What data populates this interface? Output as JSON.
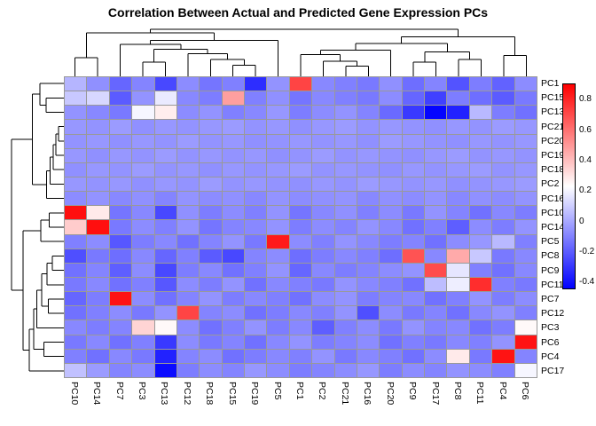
{
  "title": "Correlation Between Actual and Predicted Gene Expression PCs",
  "chart_data": {
    "type": "heatmap",
    "title": "Correlation Between Actual and Predicted Gene Expression PCs",
    "rows": [
      "PC1",
      "PC15",
      "PC13",
      "PC21",
      "PC20",
      "PC19",
      "PC18",
      "PC2",
      "PC16",
      "PC10",
      "PC14",
      "PC5",
      "PC8",
      "PC9",
      "PC11",
      "PC7",
      "PC12",
      "PC3",
      "PC6",
      "PC4",
      "PC17"
    ],
    "columns": [
      "PC10",
      "PC14",
      "PC7",
      "PC3",
      "PC13",
      "PC12",
      "PC18",
      "PC15",
      "PC19",
      "PC5",
      "PC1",
      "PC2",
      "PC21",
      "PC16",
      "PC20",
      "PC9",
      "PC17",
      "PC8",
      "PC11",
      "PC4",
      "PC6"
    ],
    "values": [
      [
        0.03,
        -0.07,
        -0.18,
        -0.1,
        -0.26,
        -0.08,
        -0.14,
        -0.11,
        -0.33,
        -0.06,
        0.72,
        -0.09,
        -0.11,
        -0.13,
        -0.07,
        -0.16,
        -0.1,
        -0.23,
        -0.12,
        -0.19,
        -0.08
      ],
      [
        0.08,
        0.12,
        -0.21,
        -0.06,
        0.17,
        -0.09,
        -0.12,
        0.48,
        -0.11,
        -0.07,
        -0.14,
        -0.09,
        -0.11,
        -0.13,
        -0.08,
        -0.18,
        -0.28,
        -0.12,
        -0.16,
        -0.21,
        -0.13
      ],
      [
        -0.06,
        -0.09,
        -0.13,
        0.2,
        0.27,
        -0.08,
        -0.06,
        -0.11,
        -0.09,
        -0.05,
        -0.12,
        -0.08,
        -0.06,
        -0.1,
        -0.17,
        -0.3,
        -0.44,
        -0.36,
        0.04,
        -0.12,
        -0.15
      ],
      [
        -0.05,
        -0.06,
        -0.04,
        -0.07,
        -0.05,
        -0.06,
        -0.05,
        -0.04,
        -0.06,
        -0.05,
        -0.07,
        -0.05,
        -0.04,
        -0.06,
        -0.05,
        -0.06,
        -0.07,
        -0.05,
        -0.06,
        -0.04,
        -0.05
      ],
      [
        -0.06,
        -0.05,
        -0.07,
        -0.05,
        -0.06,
        -0.04,
        -0.06,
        -0.05,
        -0.07,
        -0.06,
        -0.05,
        -0.06,
        -0.05,
        -0.07,
        -0.04,
        -0.05,
        -0.06,
        -0.07,
        -0.05,
        -0.06,
        -0.05
      ],
      [
        -0.05,
        -0.07,
        -0.05,
        -0.06,
        -0.04,
        -0.06,
        -0.05,
        -0.06,
        -0.05,
        -0.07,
        -0.06,
        -0.04,
        -0.06,
        -0.05,
        -0.06,
        -0.07,
        -0.05,
        -0.04,
        -0.06,
        -0.05,
        -0.06
      ],
      [
        -0.07,
        -0.05,
        -0.06,
        -0.04,
        -0.06,
        -0.05,
        -0.07,
        -0.05,
        -0.06,
        -0.05,
        -0.04,
        -0.06,
        -0.05,
        -0.06,
        -0.07,
        -0.05,
        -0.06,
        -0.05,
        -0.04,
        -0.06,
        -0.05
      ],
      [
        -0.05,
        -0.06,
        -0.05,
        -0.07,
        -0.05,
        -0.06,
        -0.04,
        -0.06,
        -0.05,
        -0.06,
        -0.07,
        -0.05,
        -0.06,
        -0.04,
        -0.05,
        -0.06,
        -0.05,
        -0.07,
        -0.06,
        -0.05,
        -0.04
      ],
      [
        -0.08,
        -0.06,
        -0.09,
        -0.07,
        -0.1,
        -0.06,
        -0.08,
        -0.07,
        -0.09,
        -0.06,
        -0.08,
        -0.07,
        -0.06,
        -0.09,
        -0.07,
        -0.08,
        -0.06,
        -0.09,
        -0.07,
        -0.08,
        -0.06
      ],
      [
        0.86,
        0.28,
        -0.14,
        -0.09,
        -0.26,
        -0.07,
        -0.12,
        -0.08,
        -0.11,
        -0.06,
        -0.14,
        -0.09,
        -0.07,
        -0.11,
        -0.08,
        -0.13,
        -0.06,
        -0.1,
        -0.15,
        -0.09,
        -0.12
      ],
      [
        0.36,
        0.86,
        -0.13,
        -0.08,
        -0.11,
        -0.06,
        -0.14,
        -0.1,
        -0.09,
        -0.06,
        -0.12,
        -0.08,
        -0.1,
        -0.06,
        -0.09,
        -0.15,
        -0.11,
        -0.2,
        -0.08,
        -0.12,
        -0.06
      ],
      [
        -0.11,
        -0.08,
        -0.22,
        -0.12,
        -0.09,
        -0.15,
        -0.1,
        -0.06,
        -0.13,
        0.83,
        -0.08,
        -0.11,
        -0.06,
        -0.09,
        -0.12,
        -0.1,
        -0.15,
        -0.08,
        -0.05,
        0.04,
        -0.11
      ],
      [
        -0.24,
        -0.13,
        -0.16,
        -0.09,
        -0.18,
        -0.11,
        -0.21,
        -0.26,
        -0.1,
        -0.08,
        -0.16,
        -0.12,
        -0.09,
        -0.11,
        -0.16,
        0.68,
        -0.09,
        0.45,
        0.08,
        -0.13,
        -0.09
      ],
      [
        -0.15,
        -0.1,
        -0.2,
        -0.08,
        -0.26,
        -0.12,
        -0.09,
        -0.15,
        -0.11,
        -0.06,
        -0.18,
        -0.09,
        -0.12,
        -0.1,
        -0.08,
        -0.06,
        0.7,
        0.16,
        -0.11,
        -0.15,
        -0.09
      ],
      [
        -0.13,
        -0.09,
        -0.15,
        -0.11,
        -0.22,
        -0.08,
        -0.12,
        -0.06,
        -0.15,
        -0.09,
        -0.11,
        -0.13,
        -0.06,
        -0.09,
        -0.11,
        -0.15,
        0.05,
        0.18,
        0.78,
        -0.11,
        -0.13
      ],
      [
        -0.18,
        -0.12,
        0.85,
        -0.08,
        -0.15,
        -0.1,
        -0.06,
        -0.12,
        -0.09,
        -0.11,
        -0.15,
        -0.08,
        -0.06,
        -0.12,
        -0.1,
        -0.09,
        -0.15,
        -0.11,
        -0.06,
        -0.12,
        -0.08
      ],
      [
        -0.15,
        -0.11,
        -0.08,
        -0.13,
        -0.06,
        0.72,
        -0.1,
        -0.08,
        -0.15,
        -0.12,
        -0.09,
        -0.11,
        -0.06,
        -0.24,
        -0.08,
        -0.13,
        -0.1,
        -0.15,
        -0.09,
        -0.06,
        -0.11
      ],
      [
        -0.09,
        -0.12,
        -0.1,
        0.34,
        0.24,
        -0.08,
        -0.15,
        -0.11,
        -0.06,
        -0.12,
        -0.09,
        -0.2,
        -0.11,
        -0.08,
        -0.13,
        -0.06,
        -0.1,
        -0.09,
        -0.15,
        -0.12,
        0.24
      ],
      [
        -0.13,
        -0.09,
        -0.15,
        -0.11,
        -0.3,
        -0.08,
        -0.13,
        -0.1,
        -0.15,
        -0.09,
        -0.06,
        -0.12,
        -0.1,
        -0.08,
        -0.15,
        -0.11,
        -0.13,
        -0.09,
        -0.11,
        -0.06,
        0.85
      ],
      [
        -0.11,
        -0.15,
        -0.09,
        -0.13,
        -0.36,
        -0.1,
        -0.08,
        -0.15,
        -0.12,
        -0.09,
        -0.11,
        -0.06,
        -0.13,
        -0.09,
        -0.11,
        -0.15,
        -0.08,
        0.28,
        -0.13,
        0.85,
        -0.1
      ],
      [
        0.06,
        -0.04,
        -0.1,
        -0.08,
        -0.42,
        -0.12,
        -0.08,
        -0.1,
        -0.05,
        -0.08,
        -0.12,
        -0.1,
        -0.08,
        -0.05,
        -0.12,
        -0.08,
        -0.1,
        -0.06,
        -0.08,
        -0.11,
        0.2
      ]
    ],
    "colormap": {
      "min": -0.45,
      "max": 0.9,
      "white_point": 0.225,
      "low": "#0000FF",
      "mid": "#FFFFFF",
      "high": "#FF0000",
      "grid_color": "#999999"
    },
    "legend_ticks": [
      "0.8",
      "0.6",
      "0.4",
      "0.2",
      "0",
      "-0.2",
      "-0.4"
    ],
    "legend_tick_values": [
      0.8,
      0.6,
      0.4,
      0.2,
      0,
      -0.2,
      -0.4
    ],
    "legend_position": "right",
    "col_dendrogram": {
      "h": 1.0,
      "c": [
        {
          "h": 0.92,
          "c": [
            {
              "h": 0.4,
              "c": [
                0,
                1
              ]
            },
            {
              "h": 0.76,
              "c": [
                {
                  "h": 0.68,
                  "c": [
                    2,
                    {
                      "h": 0.58,
                      "c": [
                        {
                          "h": 0.3,
                          "c": [
                            3,
                            4
                          ]
                        },
                        {
                          "h": 0.48,
                          "c": [
                            5,
                            {
                              "h": 0.36,
                              "c": [
                                6,
                                {
                                  "h": 0.24,
                                  "c": [
                                    7,
                                    8
                                  ]
                                }
                              ]
                            }
                          ]
                        }
                      ]
                    }
                  ]
                },
                9
              ]
            }
          ]
        },
        {
          "h": 0.84,
          "c": [
            {
              "h": 0.7,
              "c": [
                {
                  "h": 0.56,
                  "c": [
                    {
                      "h": 0.46,
                      "c": [
                        10,
                        {
                          "h": 0.32,
                          "c": [
                            11,
                            {
                              "h": 0.22,
                              "c": [
                                12,
                                13
                              ]
                            }
                          ]
                        }
                      ]
                    },
                    14
                  ]
                },
                {
                  "h": 0.52,
                  "c": [
                    {
                      "h": 0.3,
                      "c": [
                        15,
                        16
                      ]
                    },
                    {
                      "h": 0.36,
                      "c": [
                        17,
                        18
                      ]
                    }
                  ]
                }
              ]
            },
            {
              "h": 0.44,
              "c": [
                19,
                20
              ]
            }
          ]
        }
      ]
    },
    "row_dendrogram": {
      "h": 1.0,
      "c": [
        {
          "h": 0.6,
          "c": [
            {
              "h": 0.46,
              "c": [
                0,
                {
                  "h": 0.34,
                  "c": [
                    1,
                    2
                  ]
                }
              ]
            },
            {
              "h": 0.33,
              "c": [
                {
                  "h": 0.26,
                  "c": [
                    {
                      "h": 0.2,
                      "c": [
                        {
                          "h": 0.15,
                          "c": [
                            {
                              "h": 0.1,
                              "c": [
                                3,
                                4
                              ]
                            },
                            5
                          ]
                        },
                        6
                      ]
                    },
                    7
                  ]
                },
                8
              ]
            }
          ]
        },
        {
          "h": 0.78,
          "c": [
            {
              "h": 0.44,
              "c": [
                {
                  "h": 0.28,
                  "c": [
                    9,
                    10
                  ]
                },
                11
              ]
            },
            {
              "h": 0.66,
              "c": [
                {
                  "h": 0.58,
                  "c": [
                    {
                      "h": 0.52,
                      "c": [
                        {
                          "h": 0.42,
                          "c": [
                            {
                              "h": 0.32,
                              "c": [
                                {
                                  "h": 0.22,
                                  "c": [
                                    12,
                                    13
                                  ]
                                },
                                14
                              ]
                            },
                            {
                              "h": 0.3,
                              "c": [
                                15,
                                16
                              ]
                            }
                          ]
                        },
                        17
                      ]
                    },
                    {
                      "h": 0.38,
                      "c": [
                        18,
                        19
                      ]
                    }
                  ]
                },
                20
              ]
            }
          ]
        }
      ]
    }
  }
}
